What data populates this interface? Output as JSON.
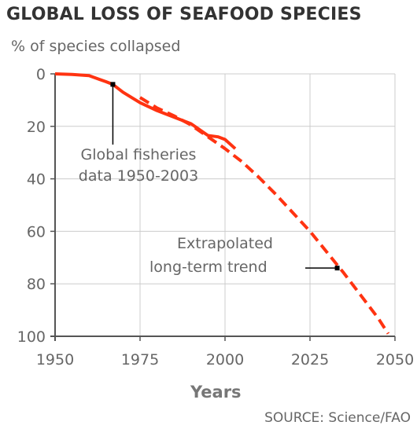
{
  "chart_data": {
    "type": "line",
    "title": "GLOBAL LOSS OF SEAFOOD SPECIES",
    "ylabel": "% of species collapsed",
    "xlabel": "Years",
    "source": "SOURCE: Science/FAO",
    "xlim": [
      1950,
      2050
    ],
    "ylim": [
      0,
      100
    ],
    "y_inverted": true,
    "xticks": [
      1950,
      1975,
      2000,
      2025,
      2050
    ],
    "yticks": [
      0,
      20,
      40,
      60,
      80,
      100
    ],
    "grid": true,
    "colors": {
      "data": "#ff3311",
      "grid": "#cccccc",
      "axis": "#555555"
    },
    "series": [
      {
        "name": "Global fisheries data 1950-2003",
        "style": "solid",
        "x": [
          1950,
          1955,
          1960,
          1965,
          1967,
          1970,
          1975,
          1980,
          1985,
          1990,
          1995,
          1998,
          2000,
          2003
        ],
        "y": [
          0,
          0.2,
          0.7,
          3,
          4,
          7,
          11,
          14,
          16.5,
          19,
          23.5,
          24,
          25,
          28.5
        ]
      },
      {
        "name": "Extrapolated long-term trend",
        "style": "dashed",
        "x": [
          1975,
          1980,
          1985,
          1990,
          1995,
          2000,
          2005,
          2010,
          2015,
          2020,
          2025,
          2030,
          2035,
          2040,
          2045,
          2048
        ],
        "y": [
          9,
          13,
          16,
          19.5,
          24,
          28.5,
          33.5,
          39.5,
          46,
          53,
          60,
          68,
          76,
          84.5,
          93,
          99
        ]
      }
    ],
    "annotations": [
      {
        "text_lines": [
          "Global fisheries",
          "data 1950-2003"
        ],
        "point": {
          "x": 1967,
          "y": 4
        }
      },
      {
        "text_lines": [
          "Extrapolated",
          "long-term trend"
        ],
        "point": {
          "x": 2033,
          "y": 74
        }
      }
    ]
  }
}
